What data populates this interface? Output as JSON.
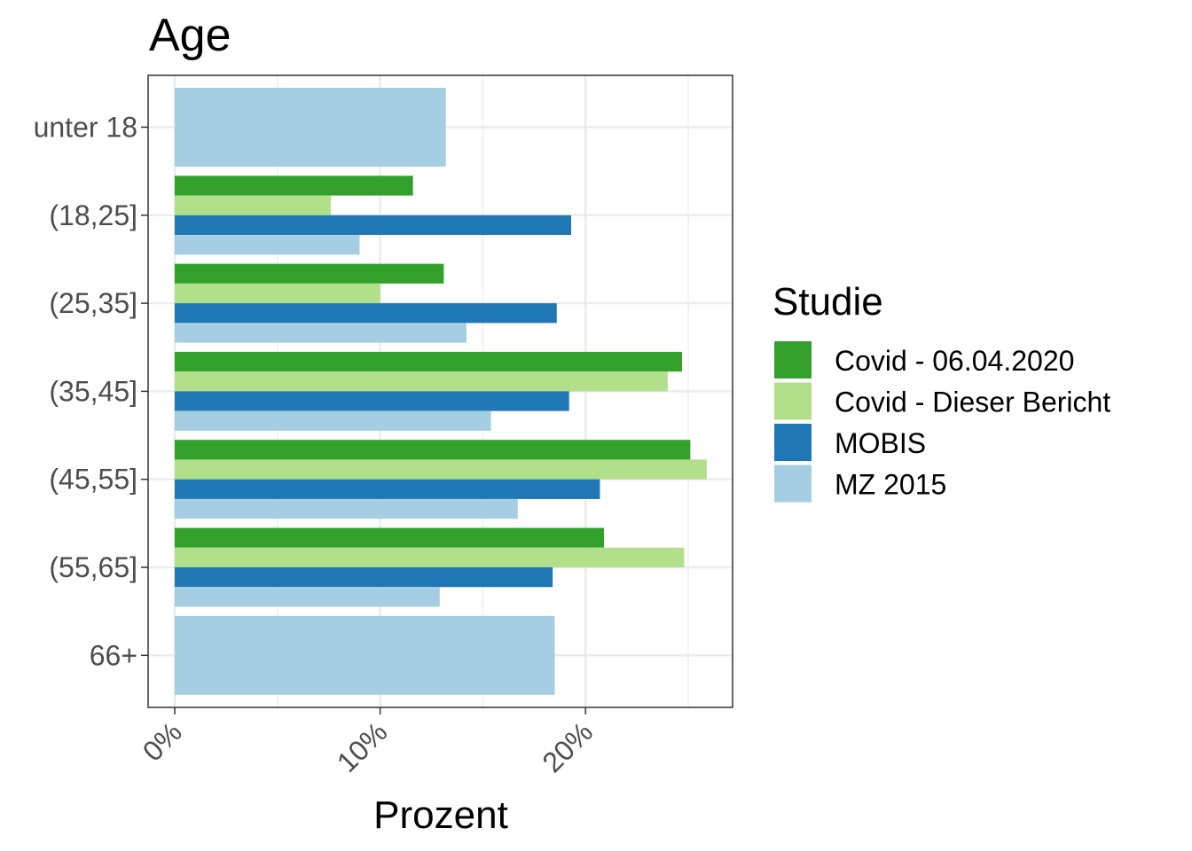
{
  "chart_data": {
    "type": "bar",
    "orientation": "horizontal",
    "title": "Age",
    "xlabel": "Prozent",
    "ylabel": "",
    "categories": [
      "unter 18",
      "(18,25]",
      "(25,35]",
      "(35,45]",
      "(45,55]",
      "(55,65]",
      "66+"
    ],
    "x_ticks": [
      "0%",
      "10%",
      "20%"
    ],
    "xlim": [
      0,
      0.27
    ],
    "grid": true,
    "legend": {
      "title": "Studie",
      "position": "right"
    },
    "series": [
      {
        "name": "Covid - 06.04.2020",
        "color": "#33a02c",
        "values": [
          null,
          0.116,
          0.131,
          0.247,
          0.251,
          0.209,
          null
        ]
      },
      {
        "name": "Covid - Dieser Bericht",
        "color": "#b2df8a",
        "values": [
          null,
          0.076,
          0.1,
          0.24,
          0.259,
          0.248,
          null
        ]
      },
      {
        "name": "MOBIS",
        "color": "#1f78b4",
        "values": [
          null,
          0.193,
          0.186,
          0.192,
          0.207,
          0.184,
          null
        ]
      },
      {
        "name": "MZ 2015",
        "color": "#a6cee3",
        "values": [
          0.132,
          0.09,
          0.142,
          0.154,
          0.167,
          0.129,
          0.185
        ]
      }
    ]
  }
}
